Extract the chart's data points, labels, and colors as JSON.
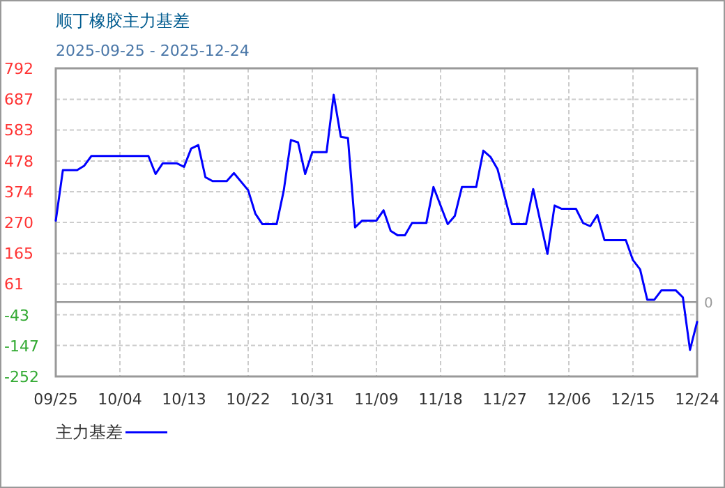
{
  "chart_data": {
    "type": "line",
    "title": "顺丁橡胶主力基差",
    "subtitle": "2025-09-25 - 2025-12-24",
    "x": [
      "2025-09-25",
      "2025-09-26",
      "2025-09-28",
      "2025-09-29",
      "2025-09-30",
      "2025-10-08",
      "2025-10-09",
      "2025-10-10",
      "2025-10-12",
      "2025-10-13",
      "2025-10-14",
      "2025-10-15",
      "2025-10-16",
      "2025-10-17",
      "2025-10-19",
      "2025-10-20",
      "2025-10-22",
      "2025-10-23",
      "2025-10-24",
      "2025-10-26",
      "2025-10-27",
      "2025-10-28",
      "2025-10-29",
      "2025-10-30",
      "2025-10-31",
      "2025-11-02",
      "2025-11-03",
      "2025-11-04",
      "2025-11-05",
      "2025-11-06",
      "2025-11-07",
      "2025-11-09",
      "2025-11-10",
      "2025-11-11",
      "2025-11-12",
      "2025-11-13",
      "2025-11-14",
      "2025-11-16",
      "2025-11-17",
      "2025-11-19",
      "2025-11-20",
      "2025-11-21",
      "2025-11-23",
      "2025-11-24",
      "2025-11-25",
      "2025-11-26",
      "2025-11-28",
      "2025-11-30",
      "2025-12-01",
      "2025-12-03",
      "2025-12-04",
      "2025-12-05",
      "2025-12-07",
      "2025-12-08",
      "2025-12-09",
      "2025-12-10",
      "2025-12-11",
      "2025-12-14",
      "2025-12-15",
      "2025-12-16",
      "2025-12-17",
      "2025-12-18",
      "2025-12-19",
      "2025-12-21",
      "2025-12-22",
      "2025-12-23",
      "2025-12-24"
    ],
    "series": [
      {
        "name": "主力基差",
        "color": "#0000ff",
        "values": [
          276,
          447,
          447,
          462,
          495,
          495,
          434,
          470,
          470,
          458,
          520,
          532,
          423,
          410,
          410,
          437,
          379,
          300,
          264,
          264,
          379,
          549,
          541,
          434,
          508,
          508,
          702,
          560,
          556,
          253,
          276,
          276,
          311,
          241,
          226,
          226,
          268,
          268,
          390,
          264,
          292,
          390,
          390,
          513,
          492,
          450,
          264,
          264,
          383,
          163,
          327,
          316,
          316,
          268,
          257,
          295,
          210,
          210,
          142,
          111,
          8,
          8,
          40,
          40,
          16,
          -162,
          -67
        ]
      }
    ],
    "xlim": [
      "2025-09-25",
      "2025-12-24"
    ],
    "xticks": [
      {
        "value": "2025-09-25",
        "label": "09/25"
      },
      {
        "value": "2025-10-04",
        "label": "10/04"
      },
      {
        "value": "2025-10-13",
        "label": "10/13"
      },
      {
        "value": "2025-10-22",
        "label": "10/22"
      },
      {
        "value": "2025-10-31",
        "label": "10/31"
      },
      {
        "value": "2025-11-09",
        "label": "11/09"
      },
      {
        "value": "2025-11-18",
        "label": "11/18"
      },
      {
        "value": "2025-11-27",
        "label": "11/27"
      },
      {
        "value": "2025-12-06",
        "label": "12/06"
      },
      {
        "value": "2025-12-15",
        "label": "12/15"
      },
      {
        "value": "2025-12-24",
        "label": "12/24"
      }
    ],
    "ylim": [
      -252,
      792
    ],
    "yticks": [
      -252,
      -147,
      -43,
      61,
      165,
      270,
      374,
      478,
      583,
      687,
      792
    ],
    "ref_lines": [
      {
        "axis": "y",
        "value": 0,
        "label": "0",
        "color": "#999999"
      }
    ],
    "grid": true,
    "legend": "bottom",
    "marker": "none",
    "line_style": "solid"
  }
}
